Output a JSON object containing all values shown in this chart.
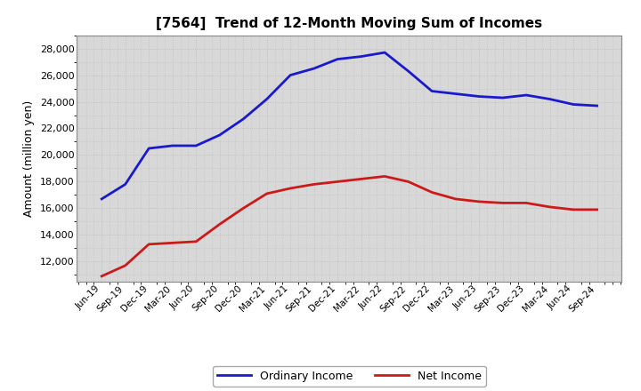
{
  "title": "[7564]  Trend of 12-Month Moving Sum of Incomes",
  "ylabel": "Amount (million yen)",
  "background_color": "#ffffff",
  "plot_background_color": "#d8d8d8",
  "grid_color": "#bbbbbb",
  "ordinary_income_color": "#1a1acc",
  "net_income_color": "#cc1a1a",
  "line_width": 2.0,
  "labels": [
    "Jun-19",
    "Sep-19",
    "Dec-19",
    "Mar-20",
    "Jun-20",
    "Sep-20",
    "Dec-20",
    "Mar-21",
    "Jun-21",
    "Sep-21",
    "Dec-21",
    "Mar-22",
    "Jun-22",
    "Sep-22",
    "Dec-22",
    "Mar-23",
    "Jun-23",
    "Sep-23",
    "Dec-23",
    "Mar-24",
    "Jun-24",
    "Sep-24"
  ],
  "ordinary_income": [
    16700,
    17800,
    20500,
    20700,
    20700,
    21500,
    22700,
    24200,
    26000,
    26500,
    27200,
    27400,
    27700,
    26300,
    24800,
    24600,
    24400,
    24300,
    24500,
    24200,
    23800,
    23700
  ],
  "net_income": [
    10900,
    11700,
    13300,
    13400,
    13500,
    14800,
    16000,
    17100,
    17500,
    17800,
    18000,
    18200,
    18400,
    18000,
    17200,
    16700,
    16500,
    16400,
    16400,
    16100,
    15900,
    15900
  ],
  "ylim": [
    10500,
    29000
  ],
  "yticks": [
    12000,
    14000,
    16000,
    18000,
    20000,
    22000,
    24000,
    26000,
    28000
  ],
  "legend_labels": [
    "Ordinary Income",
    "Net Income"
  ]
}
